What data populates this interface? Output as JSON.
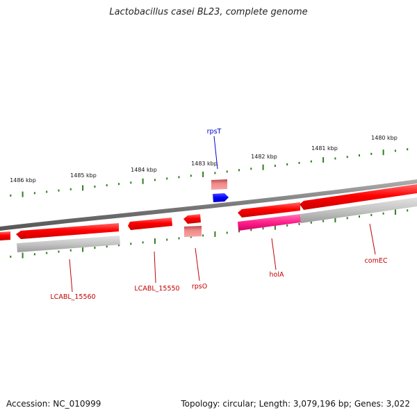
{
  "title": "Lactobacillus casei BL23, complete genome",
  "footer": {
    "accession": "Accession: NC_010999",
    "summary": "Topology: circular; Length: 3,079,196 bp; Genes: 3,022"
  },
  "colors": {
    "backbone": "#8a8a8a",
    "tick": "#2e7d1f",
    "gene_red": "#ff0000",
    "gene_pink": "#ff2d8f",
    "gene_blue": "#0000ff",
    "rna_rose": "#e68080",
    "gray_feature": "#bdbdbd",
    "label_red": "#c00000",
    "label_blue": "#0000cc"
  },
  "ticks": [
    "1486 kbp",
    "1485 kbp",
    "1484 kbp",
    "1483 kbp",
    "1482 kbp",
    "1481 kbp",
    "1480 kbp"
  ],
  "genes": [
    {
      "name": "rpsT",
      "color": "blue"
    },
    {
      "name": "LCABL_15560",
      "color": "red"
    },
    {
      "name": "LCABL_15550",
      "color": "red"
    },
    {
      "name": "rpsO",
      "color": "red"
    },
    {
      "name": "holA",
      "color": "red"
    },
    {
      "name": "comEC",
      "color": "red"
    }
  ]
}
